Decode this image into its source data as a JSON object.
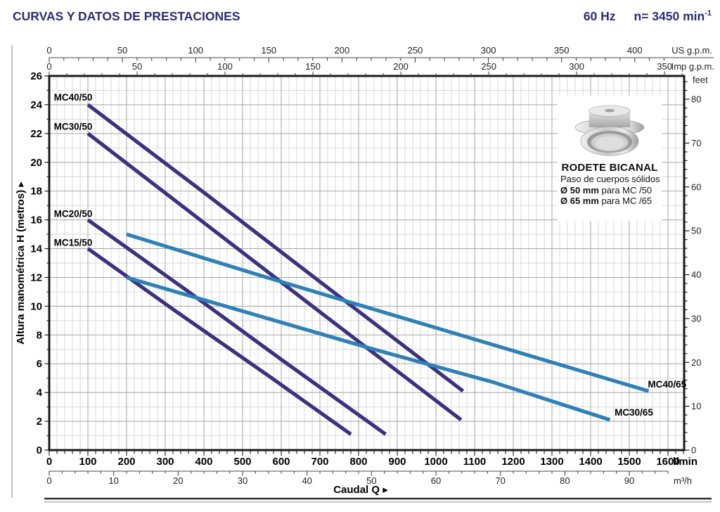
{
  "header": {
    "title": "CURVAS Y DATOS DE PRESTACIONES",
    "frequency": "60 Hz",
    "speed": "n= 3450 min",
    "speed_exponent": "-1"
  },
  "inset": {
    "title": "RODETE BICANAL",
    "subtitle": "Paso de cuerpos sólidos",
    "row1_bold": "Ø 50 mm",
    "row1_text": " para MC /50",
    "row2_bold": "Ø 65 mm",
    "row2_text": " para MC /65",
    "image": "bicanal-impeller-photo"
  },
  "chart_data": {
    "type": "line",
    "title": "",
    "x_axis_bottom": {
      "unit": "l/min",
      "title": "Caudal Q",
      "arrow": "▸",
      "labels": [
        0,
        100,
        200,
        300,
        400,
        500,
        600,
        700,
        800,
        900,
        1000,
        1100,
        1200,
        1300,
        1400,
        1500,
        1600
      ],
      "minor_step": 20,
      "max": 1640
    },
    "x_axis_bottom_secondary": {
      "unit": "m³/h",
      "labels": [
        0,
        10,
        20,
        30,
        40,
        50,
        60,
        70,
        80,
        90
      ],
      "minor_step": 2,
      "max": 96,
      "lmin_per_unit": 16.667
    },
    "x_axis_top_us": {
      "unit": "US g.p.m.",
      "labels": [
        0,
        50,
        100,
        150,
        200,
        250,
        300,
        350,
        400
      ],
      "minor_step": 10,
      "max": 420,
      "lmin_per_unit": 3.7854
    },
    "x_axis_top_imp": {
      "unit": "Imp g.p.m.",
      "labels": [
        0,
        50,
        100,
        150,
        200,
        250,
        300,
        350
      ],
      "minor_step": 10,
      "max": 360,
      "lmin_per_unit": 4.5461
    },
    "y_axis_left": {
      "unit": "metros",
      "title": "Altura manométrica H  (metros)",
      "arrow": "▸",
      "labels": [
        0,
        2,
        4,
        6,
        8,
        10,
        12,
        14,
        16,
        18,
        20,
        22,
        24,
        26
      ],
      "minor_step": 1,
      "max": 26
    },
    "y_axis_right": {
      "unit": "feet",
      "labels": [
        0,
        10,
        20,
        30,
        40,
        50,
        60,
        70,
        80
      ],
      "minor_step": 2,
      "max": 84,
      "m_per_unit": 0.3048
    },
    "grid": {
      "major_color": "#a5a5a5",
      "minor_color": "#d9d9d9"
    },
    "series": [
      {
        "name": "MC40/50",
        "color": "#3a3180",
        "points": [
          [
            100,
            24.0
          ],
          [
            400,
            17.9
          ],
          [
            700,
            11.7
          ],
          [
            1070,
            4.1
          ]
        ],
        "label_at": [
          12,
          24.3
        ],
        "label_anchor": "start"
      },
      {
        "name": "MC30/50",
        "color": "#3a3180",
        "points": [
          [
            100,
            22.0
          ],
          [
            400,
            15.8
          ],
          [
            700,
            9.6
          ],
          [
            1065,
            2.1
          ]
        ],
        "label_at": [
          12,
          22.25
        ],
        "label_anchor": "start"
      },
      {
        "name": "MC20/50",
        "color": "#3a3180",
        "points": [
          [
            100,
            16.0
          ],
          [
            350,
            11.2
          ],
          [
            600,
            6.3
          ],
          [
            870,
            1.1
          ]
        ],
        "label_at": [
          12,
          16.2
        ],
        "label_anchor": "start"
      },
      {
        "name": "MC15/50",
        "color": "#3a3180",
        "points": [
          [
            100,
            14.0
          ],
          [
            330,
            9.6
          ],
          [
            560,
            5.3
          ],
          [
            780,
            1.1
          ]
        ],
        "label_at": [
          12,
          14.2
        ],
        "label_anchor": "start"
      },
      {
        "name": "MC40/65",
        "color": "#2e81b8",
        "points": [
          [
            200,
            15.0
          ],
          [
            550,
            12.1
          ],
          [
            900,
            9.3
          ],
          [
            1250,
            6.5
          ],
          [
            1550,
            4.1
          ]
        ],
        "label_at": [
          1548,
          4.35
        ],
        "label_anchor": "start"
      },
      {
        "name": "MC30/65",
        "color": "#2e81b8",
        "points": [
          [
            200,
            12.0
          ],
          [
            520,
            9.5
          ],
          [
            840,
            7.0
          ],
          [
            1150,
            4.7
          ],
          [
            1450,
            2.1
          ]
        ],
        "label_at": [
          1462,
          2.4
        ],
        "label_anchor": "start"
      }
    ]
  }
}
